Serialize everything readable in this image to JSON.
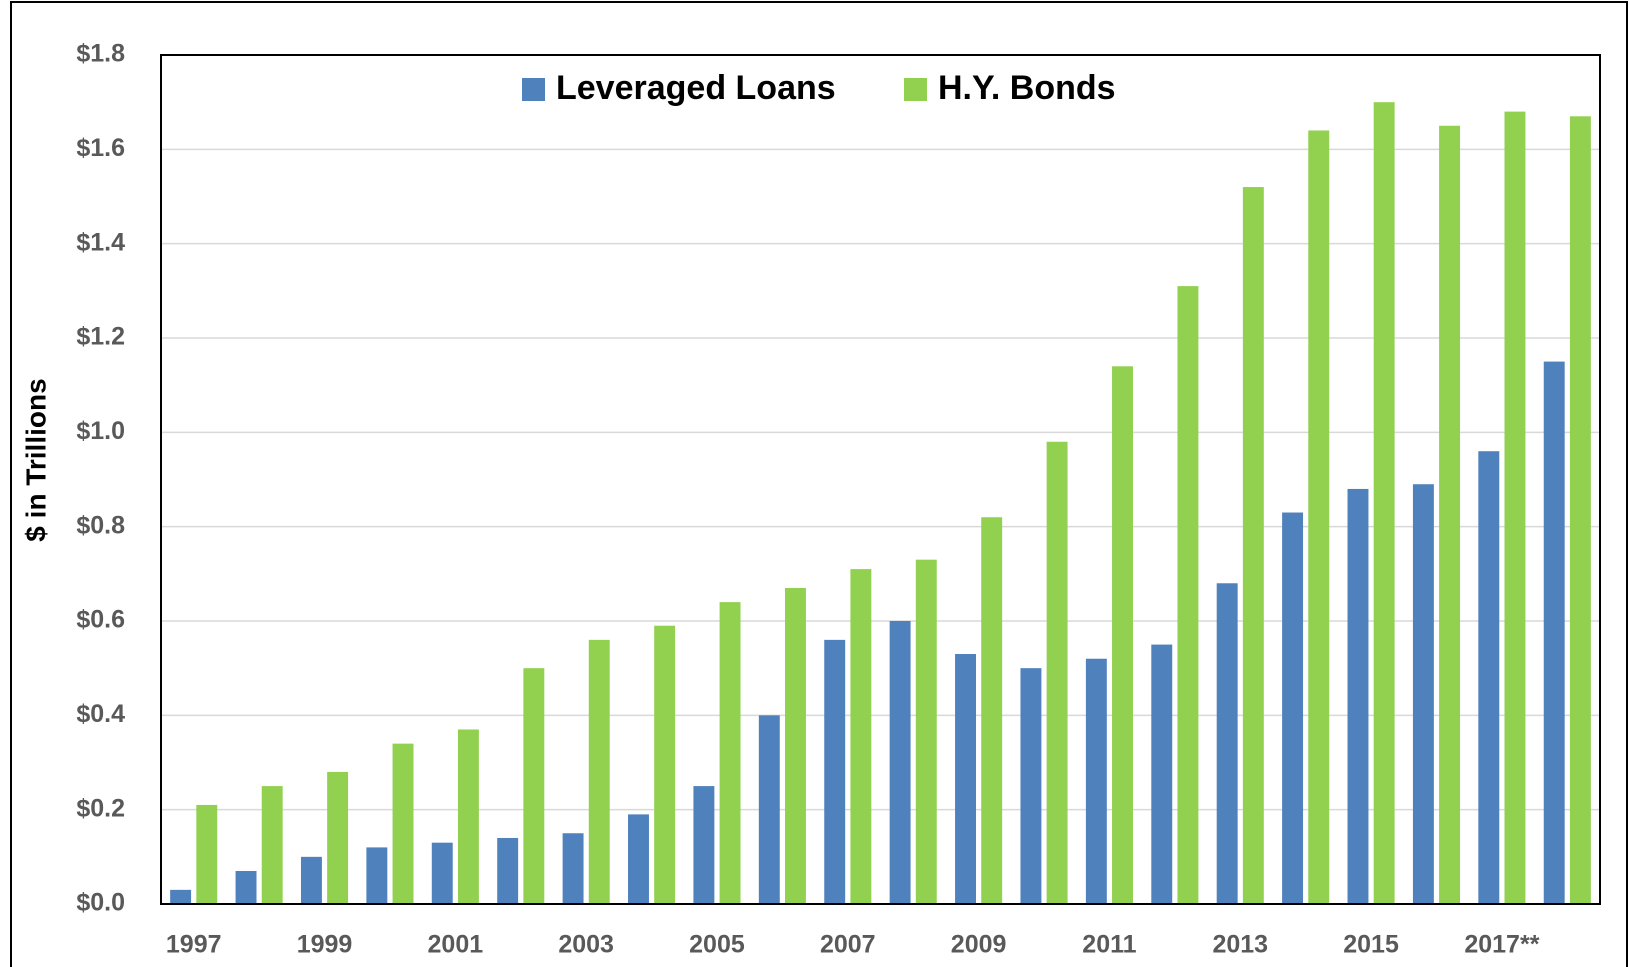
{
  "chart_data": {
    "type": "bar",
    "y_label": "$ in Trillions",
    "categories": [
      "1997",
      null,
      "1999",
      null,
      "2001",
      null,
      "2003",
      null,
      "2005",
      null,
      "2007",
      null,
      "2009",
      null,
      "2011",
      null,
      "2013",
      null,
      "2015",
      null,
      "2017**",
      null
    ],
    "series": [
      {
        "name": "Leveraged Loans",
        "color": "#4f81bd",
        "values": [
          0.03,
          0.07,
          0.1,
          0.12,
          0.13,
          0.14,
          0.15,
          0.19,
          0.25,
          0.4,
          0.56,
          0.6,
          0.53,
          0.5,
          0.52,
          0.55,
          0.68,
          0.83,
          0.88,
          0.89,
          0.96,
          1.15
        ]
      },
      {
        "name": "H.Y. Bonds",
        "color": "#92d050",
        "values": [
          0.21,
          0.25,
          0.28,
          0.34,
          0.37,
          0.5,
          0.56,
          0.59,
          0.64,
          0.67,
          0.71,
          0.73,
          0.82,
          0.98,
          1.14,
          1.31,
          1.52,
          1.64,
          1.7,
          1.65,
          1.68,
          1.67
        ]
      }
    ],
    "ylim": [
      0,
      1.8
    ],
    "yticks": [
      {
        "value": 0,
        "label": "$0.0"
      },
      {
        "value": 0.2,
        "label": "$0.2"
      },
      {
        "value": 0.4,
        "label": "$0.4"
      },
      {
        "value": 0.6,
        "label": "$0.6"
      },
      {
        "value": 0.8,
        "label": "$0.8"
      },
      {
        "value": 1.0,
        "label": "$1.0"
      },
      {
        "value": 1.2,
        "label": "$1.2"
      },
      {
        "value": 1.4,
        "label": "$1.4"
      },
      {
        "value": 1.6,
        "label": "$1.6"
      },
      {
        "value": 1.8,
        "label": "$1.8"
      }
    ],
    "grid": true,
    "legend": "top"
  }
}
